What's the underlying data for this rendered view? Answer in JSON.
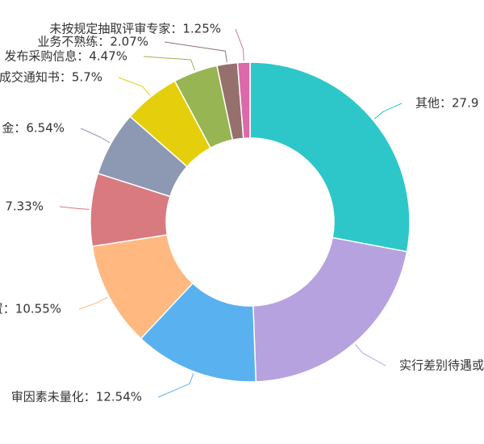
{
  "chart_data": {
    "type": "pie",
    "donut": true,
    "legend": "none",
    "slices": [
      {
        "label": "其他",
        "value": 27.9,
        "text": "其他：27.9",
        "color": "#2ec7c9"
      },
      {
        "label": "实行差别待遇或",
        "value": 21.38,
        "text": "实行差别待遇或",
        "color": "#b6a2de"
      },
      {
        "label": "审因素未量化",
        "value": 12.54,
        "text": "审因素未量化：12.54%",
        "color": "#5ab1ef"
      },
      {
        "label": "置",
        "value": 10.55,
        "text": "置：10.55%",
        "color": "#ffb980"
      },
      {
        "label": "",
        "value": 7.33,
        "text": "7.33%",
        "color": "#d87a80"
      },
      {
        "label": "金",
        "value": 6.54,
        "text": "金：6.54%",
        "color": "#8d98b3"
      },
      {
        "label": "成交通知书",
        "value": 5.7,
        "text": "成交通知书：5.7%",
        "color": "#e5cf0d"
      },
      {
        "label": "发布采购信息",
        "value": 4.47,
        "text": "发布采购信息：4.47%",
        "color": "#97b552"
      },
      {
        "label": "业务不熟练",
        "value": 2.07,
        "text": "业务不熟练：2.07%",
        "color": "#95706d"
      },
      {
        "label": "未按规定抽取评审专家",
        "value": 1.25,
        "text": "未按规定抽取评审专家：1.25%",
        "color": "#dc69aa"
      }
    ]
  }
}
